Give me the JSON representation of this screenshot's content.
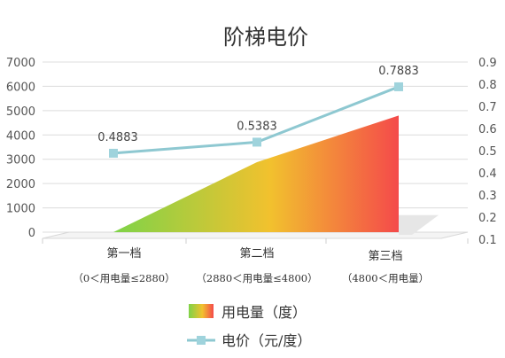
{
  "chart_data": {
    "type": "area+line",
    "title": "阶梯电价",
    "categories": [
      {
        "label": "第一档",
        "sublabel": "（0＜用电量≤2880）"
      },
      {
        "label": "第二档",
        "sublabel": "（2880＜用电量≤4800）"
      },
      {
        "label": "第三档",
        "sublabel": "（4800＜用电量）"
      }
    ],
    "left_axis": {
      "ylim": [
        0,
        7000
      ],
      "ticks": [
        "0",
        "1000",
        "2000",
        "3000",
        "4000",
        "5000",
        "6000",
        "7000"
      ]
    },
    "right_axis": {
      "ylim": [
        0.1,
        0.9
      ],
      "ticks": [
        "0.1",
        "0.2",
        "0.3",
        "0.4",
        "0.5",
        "0.6",
        "0.7",
        "0.8",
        "0.9"
      ]
    },
    "series": [
      {
        "name": "用电量（度）",
        "type": "area",
        "axis": "left",
        "x": [
          0,
          1,
          2
        ],
        "values": [
          0,
          2880,
          4800
        ],
        "gradient": [
          "#7ed348",
          "#f2c12e",
          "#f44a4a"
        ]
      },
      {
        "name": "电价（元/度）",
        "type": "line",
        "axis": "right",
        "values": [
          0.4883,
          0.5383,
          0.7883
        ],
        "labels": [
          "0.4883",
          "0.5383",
          "0.7883"
        ],
        "color": "#8ec8d1",
        "marker_color": "#9fd3dc"
      }
    ],
    "grid": true,
    "legend": "bottom-center"
  }
}
